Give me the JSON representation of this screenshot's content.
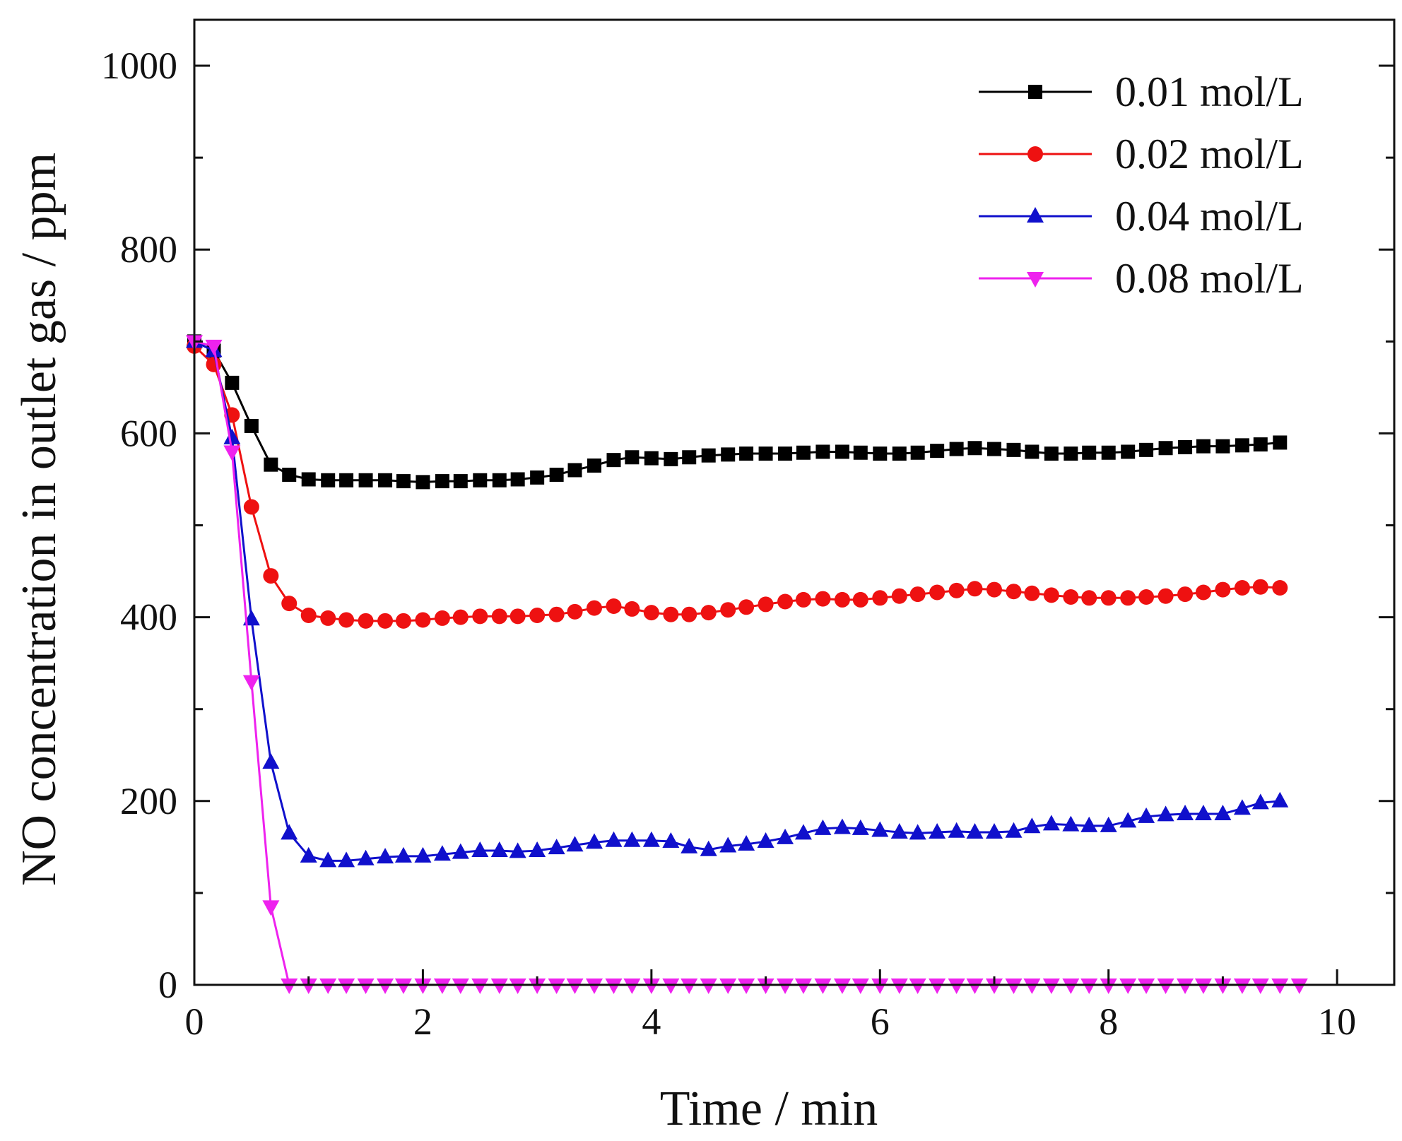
{
  "chart_data": {
    "type": "line",
    "title": "",
    "xlabel": "Time / min",
    "ylabel": "NO concentration in outlet gas / ppm",
    "xlim": [
      0,
      10.5
    ],
    "ylim": [
      0,
      1050
    ],
    "xticks": [
      0,
      2,
      4,
      6,
      8,
      10
    ],
    "xtick_labels": [
      "0",
      "2",
      "4",
      "6",
      "8",
      "10"
    ],
    "yticks": [
      0,
      200,
      400,
      600,
      800,
      1000
    ],
    "ytick_labels": [
      "0",
      "200",
      "400",
      "600",
      "800",
      "1000"
    ],
    "grid": false,
    "legend_position": "top-right",
    "series": [
      {
        "name": "0.01 mol/L",
        "color": "#000000",
        "marker": "square",
        "x": [
          0,
          0.17,
          0.33,
          0.5,
          0.67,
          0.83,
          1.0,
          1.17,
          1.33,
          1.5,
          1.67,
          1.83,
          2.0,
          2.17,
          2.33,
          2.5,
          2.67,
          2.83,
          3.0,
          3.17,
          3.33,
          3.5,
          3.67,
          3.83,
          4.0,
          4.17,
          4.33,
          4.5,
          4.67,
          4.83,
          5.0,
          5.17,
          5.33,
          5.5,
          5.67,
          5.83,
          6.0,
          6.17,
          6.33,
          6.5,
          6.67,
          6.83,
          7.0,
          7.17,
          7.33,
          7.5,
          7.67,
          7.83,
          8.0,
          8.17,
          8.33,
          8.5,
          8.67,
          8.83,
          9.0,
          9.17,
          9.33,
          9.5
        ],
        "y": [
          700,
          690,
          655,
          608,
          566,
          555,
          550,
          549,
          549,
          549,
          549,
          548,
          547,
          548,
          548,
          549,
          549,
          550,
          552,
          555,
          560,
          565,
          571,
          574,
          573,
          572,
          574,
          576,
          577,
          578,
          578,
          578,
          579,
          580,
          580,
          579,
          578,
          578,
          579,
          581,
          583,
          584,
          583,
          582,
          580,
          578,
          578,
          579,
          579,
          580,
          582,
          584,
          585,
          586,
          586,
          587,
          588,
          590
        ]
      },
      {
        "name": "0.02 mol/L",
        "color": "#ee1111",
        "marker": "circle",
        "x": [
          0,
          0.17,
          0.33,
          0.5,
          0.67,
          0.83,
          1.0,
          1.17,
          1.33,
          1.5,
          1.67,
          1.83,
          2.0,
          2.17,
          2.33,
          2.5,
          2.67,
          2.83,
          3.0,
          3.17,
          3.33,
          3.5,
          3.67,
          3.83,
          4.0,
          4.17,
          4.33,
          4.5,
          4.67,
          4.83,
          5.0,
          5.17,
          5.33,
          5.5,
          5.67,
          5.83,
          6.0,
          6.17,
          6.33,
          6.5,
          6.67,
          6.83,
          7.0,
          7.17,
          7.33,
          7.5,
          7.67,
          7.83,
          8.0,
          8.17,
          8.33,
          8.5,
          8.67,
          8.83,
          9.0,
          9.17,
          9.33,
          9.5
        ],
        "y": [
          695,
          675,
          620,
          520,
          445,
          415,
          402,
          399,
          397,
          396,
          396,
          396,
          397,
          399,
          400,
          401,
          401,
          401,
          402,
          403,
          406,
          410,
          412,
          409,
          405,
          403,
          403,
          405,
          408,
          411,
          414,
          417,
          419,
          420,
          419,
          419,
          421,
          423,
          425,
          427,
          429,
          431,
          430,
          428,
          426,
          424,
          422,
          421,
          421,
          421,
          422,
          423,
          425,
          427,
          430,
          432,
          433,
          432
        ]
      },
      {
        "name": "0.04 mol/L",
        "color": "#1010cc",
        "marker": "triangle-up",
        "x": [
          0,
          0.17,
          0.33,
          0.5,
          0.67,
          0.83,
          1.0,
          1.17,
          1.33,
          1.5,
          1.67,
          1.83,
          2.0,
          2.17,
          2.33,
          2.5,
          2.67,
          2.83,
          3.0,
          3.17,
          3.33,
          3.5,
          3.67,
          3.83,
          4.0,
          4.17,
          4.33,
          4.5,
          4.67,
          4.83,
          5.0,
          5.17,
          5.33,
          5.5,
          5.67,
          5.83,
          6.0,
          6.17,
          6.33,
          6.5,
          6.67,
          6.83,
          7.0,
          7.17,
          7.33,
          7.5,
          7.67,
          7.83,
          8.0,
          8.17,
          8.33,
          8.5,
          8.67,
          8.83,
          9.0,
          9.17,
          9.33,
          9.5
        ],
        "y": [
          700,
          690,
          595,
          398,
          242,
          165,
          140,
          135,
          135,
          137,
          139,
          140,
          140,
          142,
          144,
          146,
          146,
          145,
          146,
          149,
          152,
          155,
          157,
          157,
          157,
          156,
          150,
          147,
          151,
          153,
          156,
          160,
          165,
          170,
          171,
          170,
          168,
          166,
          165,
          166,
          167,
          166,
          166,
          167,
          172,
          175,
          174,
          173,
          173,
          178,
          183,
          185,
          186,
          186,
          186,
          192,
          198,
          200
        ]
      },
      {
        "name": "0.08 mol/L",
        "color": "#ee22ee",
        "marker": "triangle-down",
        "x": [
          0,
          0.17,
          0.33,
          0.5,
          0.67,
          0.83,
          1.0,
          1.17,
          1.33,
          1.5,
          1.67,
          1.83,
          2.0,
          2.17,
          2.33,
          2.5,
          2.67,
          2.83,
          3.0,
          3.17,
          3.33,
          3.5,
          3.67,
          3.83,
          4.0,
          4.17,
          4.33,
          4.5,
          4.67,
          4.83,
          5.0,
          5.17,
          5.33,
          5.5,
          5.67,
          5.83,
          6.0,
          6.17,
          6.33,
          6.5,
          6.67,
          6.83,
          7.0,
          7.17,
          7.33,
          7.5,
          7.67,
          7.83,
          8.0,
          8.17,
          8.33,
          8.5,
          8.67,
          8.83,
          9.0,
          9.17,
          9.33,
          9.5,
          9.67
        ],
        "y": [
          700,
          695,
          580,
          330,
          85,
          0,
          0,
          0,
          0,
          0,
          0,
          0,
          0,
          0,
          0,
          0,
          0,
          0,
          0,
          0,
          0,
          0,
          0,
          0,
          0,
          0,
          0,
          0,
          0,
          0,
          0,
          0,
          0,
          0,
          0,
          0,
          0,
          0,
          0,
          0,
          0,
          0,
          0,
          0,
          0,
          0,
          0,
          0,
          0,
          0,
          0,
          0,
          0,
          0,
          0,
          0,
          0,
          0,
          0
        ]
      }
    ]
  }
}
